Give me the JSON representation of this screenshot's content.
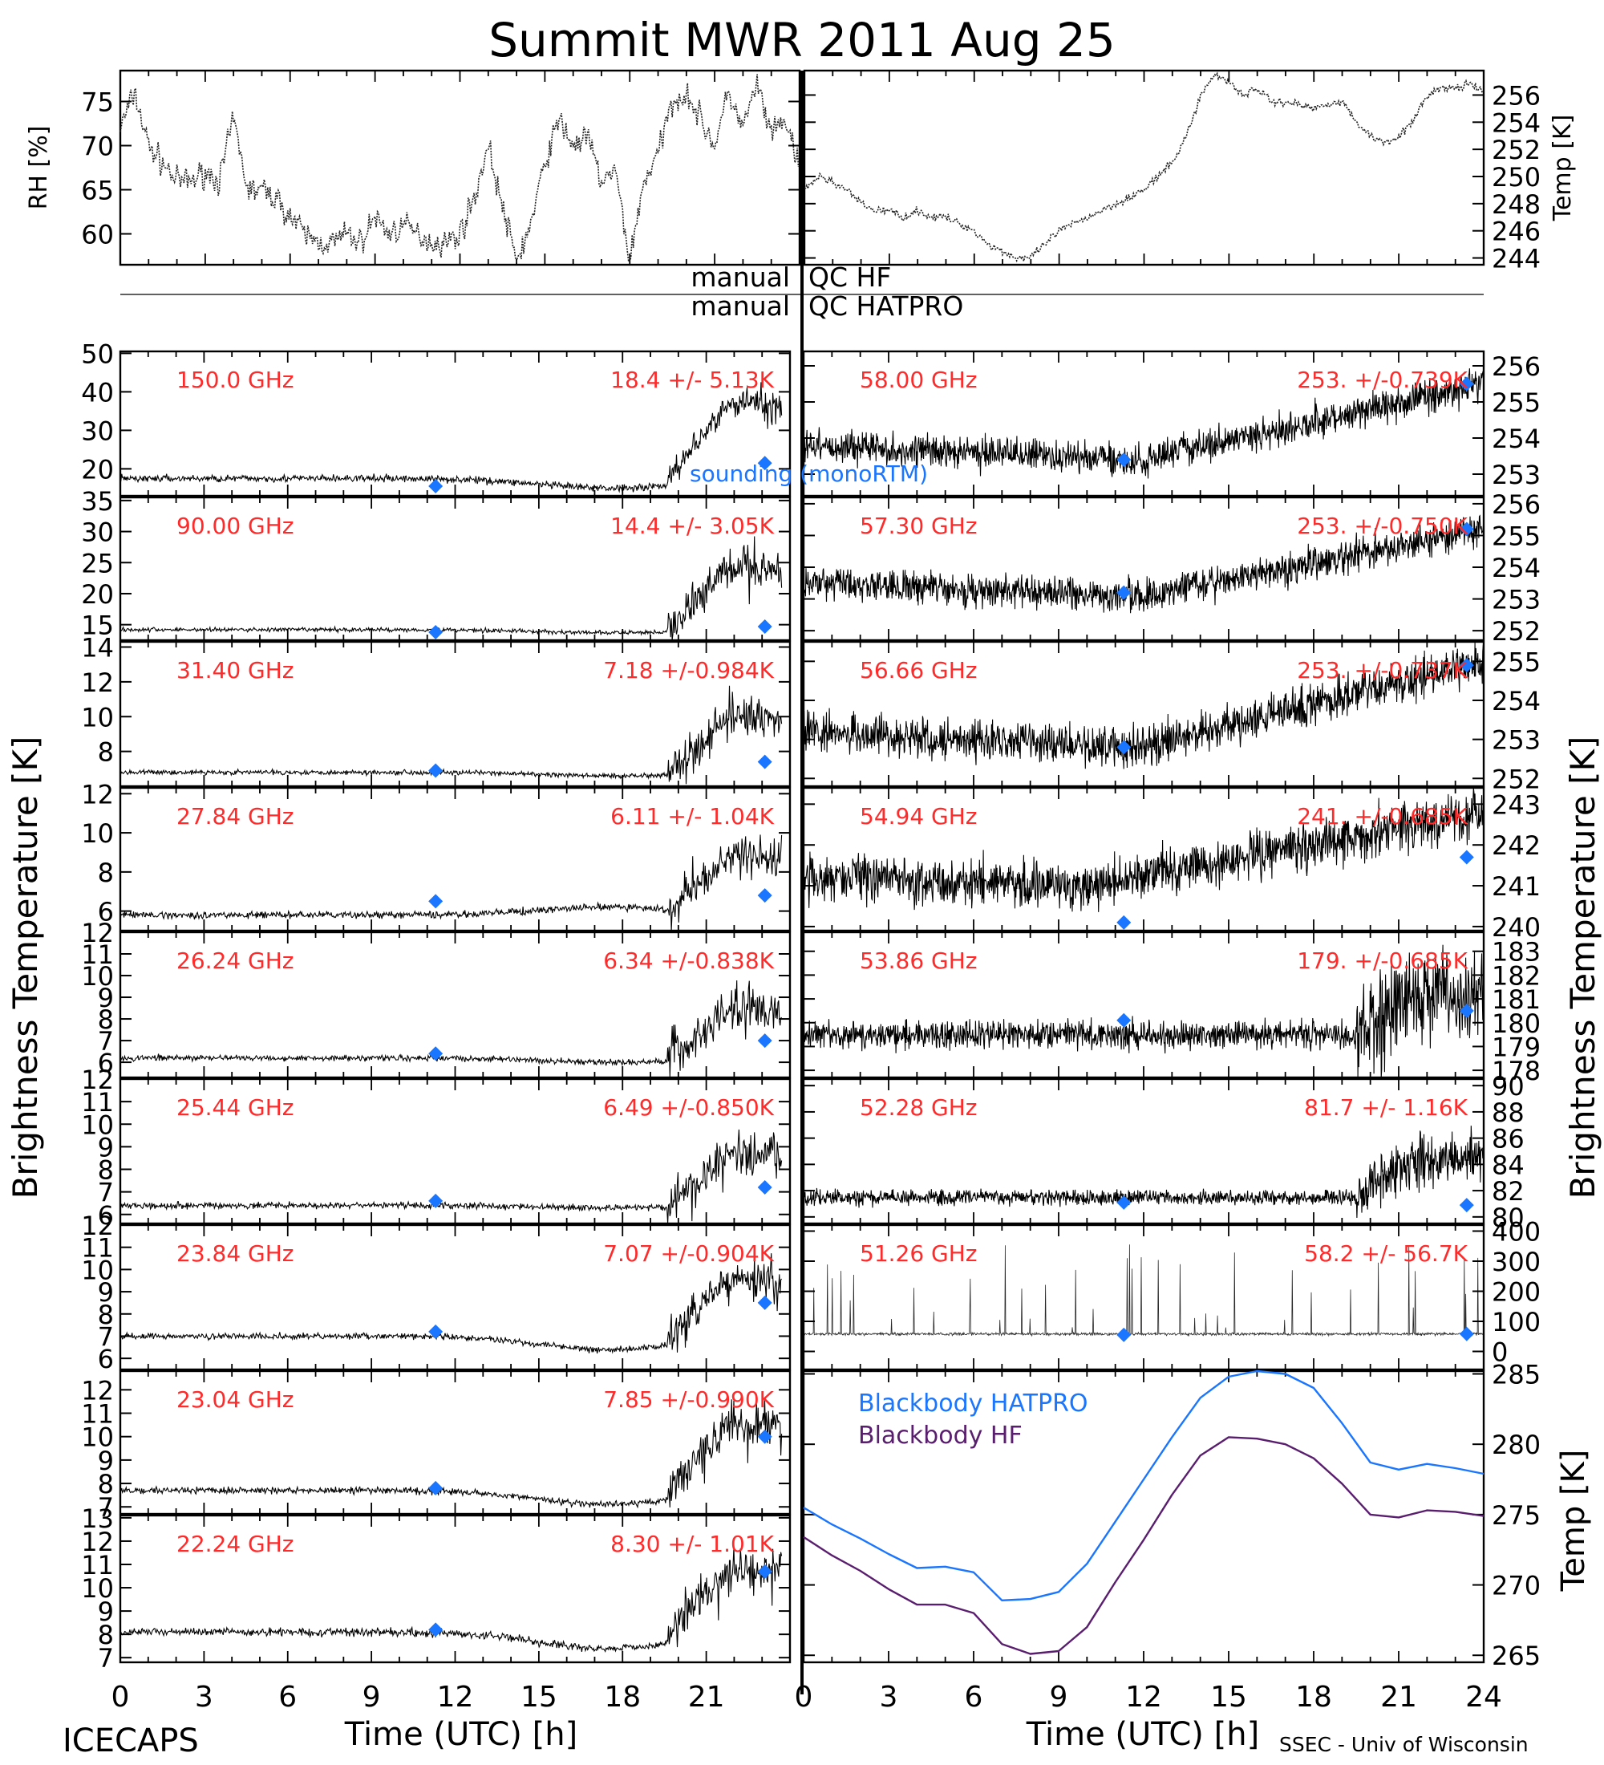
{
  "page": {
    "title": "Summit MWR 2011 Aug 25",
    "footer_left": "ICECAPS",
    "footer_right": "SSEC - Univ of Wisconsin",
    "xlabel": "Time (UTC) [h]",
    "ylabel_left": "Brightness Temperature [K]",
    "ylabel_right": "Brightness Temperature [K]",
    "qc_label_left_1": "manual",
    "qc_label_right_1": "QC HF",
    "qc_label_left_2": "manual",
    "qc_label_right_2": "QC HATPRO",
    "sounding_label": "sounding (monoRTM)",
    "colors": {
      "stats": "#ff2a2a",
      "sounding": "#1a75ff",
      "bb_hatpro": "#1a75ff",
      "bb_hf": "#5a1e6e",
      "data": "#000000"
    }
  },
  "chart_data": [
    {
      "id": "rh",
      "type": "line",
      "ylabel": "RH [%]",
      "xlim": [
        0,
        24
      ],
      "ylim": [
        56.5,
        78.5
      ],
      "yticks": [
        60,
        65,
        70,
        75
      ],
      "series": [
        {
          "x": [
            0,
            0.5,
            1,
            1.5,
            2,
            2.5,
            3,
            3.5,
            4,
            4.5,
            5,
            5.5,
            6,
            6.5,
            7,
            7.5,
            8,
            8.5,
            9,
            9.5,
            10,
            10.5,
            11,
            11.5,
            12,
            12.5,
            13,
            13.5,
            14,
            14.5,
            15,
            15.5,
            16,
            16.5,
            17,
            17.5,
            18,
            18.5,
            19,
            19.5,
            20,
            20.5,
            21,
            21.5,
            22,
            22.5,
            23,
            23.5,
            24
          ],
          "y": [
            72,
            76,
            70,
            68,
            66,
            66,
            67,
            66,
            73,
            65,
            65,
            64,
            62,
            60,
            59,
            59,
            60,
            59,
            62,
            60,
            61,
            60,
            59,
            59,
            60,
            64,
            70,
            63,
            57,
            61,
            68,
            73,
            70,
            71,
            66,
            67,
            57,
            66,
            69,
            75,
            76,
            73,
            70,
            76,
            72,
            77,
            71,
            73,
            67
          ]
        }
      ]
    },
    {
      "id": "temp",
      "type": "line",
      "ylabel": "Temp [K]",
      "xlim": [
        0,
        24
      ],
      "ylim": [
        243.5,
        257.8
      ],
      "yticks": [
        244,
        246,
        248,
        250,
        252,
        254,
        256
      ],
      "series": [
        {
          "x": [
            0,
            0.5,
            1,
            1.5,
            2,
            2.5,
            3,
            3.5,
            4,
            4.5,
            5,
            5.5,
            6,
            6.5,
            7,
            7.5,
            8,
            8.5,
            9,
            9.5,
            10,
            10.5,
            11,
            11.5,
            12,
            12.5,
            13,
            13.5,
            14,
            14.5,
            15,
            15.5,
            16,
            16.5,
            17,
            17.5,
            18,
            18.5,
            19,
            19.5,
            20,
            20.5,
            21,
            21.5,
            22,
            22.5,
            23,
            23.5,
            24
          ],
          "y": [
            249,
            250,
            249.6,
            249,
            248,
            247.5,
            247.5,
            247,
            247.5,
            247,
            247,
            246.5,
            246,
            245,
            244.5,
            244,
            244,
            245,
            246,
            246.5,
            247,
            247.5,
            248,
            248.5,
            249,
            250,
            251,
            253,
            256,
            257.5,
            257,
            256,
            256.5,
            255.5,
            255.5,
            255.3,
            255,
            255.4,
            255.5,
            254,
            253,
            252.5,
            253,
            254,
            256,
            256.5,
            256.5,
            256.8,
            256.2
          ]
        }
      ]
    },
    {
      "id": "p150",
      "type": "line",
      "col": "left",
      "row": 0,
      "freq": "150.0 GHz",
      "stats": "18.4 +/-  5.13K",
      "ylim": [
        13,
        50.5
      ],
      "yticks": [
        20,
        30,
        40,
        50
      ],
      "base": 17.5,
      "baseline_dip": 2.5,
      "noise": 0.8,
      "rise_to": 37,
      "rise_noise": 5,
      "sounding": [
        {
          "x": 11.3,
          "y": 15.5
        },
        {
          "x": 23.1,
          "y": 21.5
        }
      ]
    },
    {
      "id": "p90",
      "type": "line",
      "col": "left",
      "row": 1,
      "freq": "90.00 GHz",
      "stats": "14.4 +/-  3.05K",
      "ylim": [
        12.5,
        35.5
      ],
      "yticks": [
        15,
        20,
        25,
        30,
        35
      ],
      "base": 14.2,
      "baseline_dip": 0.5,
      "noise": 0.3,
      "rise_to": 24,
      "rise_noise": 4,
      "sounding": [
        {
          "x": 11.3,
          "y": 13.8
        },
        {
          "x": 23.1,
          "y": 14.7
        }
      ]
    },
    {
      "id": "p31",
      "type": "line",
      "col": "left",
      "row": 2,
      "freq": "31.40 GHz",
      "stats": "7.18 +/-0.984K",
      "ylim": [
        6,
        14.3
      ],
      "yticks": [
        8,
        10,
        12,
        14
      ],
      "base": 6.8,
      "baseline_dip": 0.2,
      "noise": 0.12,
      "rise_to": 10,
      "rise_noise": 1.5,
      "sounding": [
        {
          "x": 11.3,
          "y": 6.9
        },
        {
          "x": 23.1,
          "y": 7.4
        }
      ]
    },
    {
      "id": "p27",
      "type": "line",
      "col": "left",
      "row": 3,
      "freq": "27.84 GHz",
      "stats": "6.11 +/- 1.04K",
      "ylim": [
        5,
        12.3
      ],
      "yticks": [
        6,
        8,
        10,
        12
      ],
      "base": 5.8,
      "baseline_dip": -0.4,
      "noise": 0.15,
      "rise_to": 8.8,
      "rise_noise": 1.3,
      "sounding": [
        {
          "x": 11.3,
          "y": 6.5
        },
        {
          "x": 23.1,
          "y": 6.8
        }
      ]
    },
    {
      "id": "p26",
      "type": "line",
      "col": "left",
      "row": 4,
      "freq": "26.24 GHz",
      "stats": "6.34 +/-0.838K",
      "ylim": [
        5.3,
        12
      ],
      "yticks": [
        6,
        7,
        8,
        9,
        10,
        11,
        12
      ],
      "base": 6.2,
      "baseline_dip": 0.2,
      "noise": 0.12,
      "rise_to": 8.5,
      "rise_noise": 1.2,
      "sounding": [
        {
          "x": 11.3,
          "y": 6.4
        },
        {
          "x": 23.1,
          "y": 7
        }
      ]
    },
    {
      "id": "p25",
      "type": "line",
      "col": "left",
      "row": 5,
      "freq": "25.44 GHz",
      "stats": "6.49 +/-0.850K",
      "ylim": [
        5.6,
        12
      ],
      "yticks": [
        6,
        7,
        8,
        9,
        10,
        11,
        12
      ],
      "base": 6.4,
      "baseline_dip": 0.1,
      "noise": 0.12,
      "rise_to": 8.6,
      "rise_noise": 1.2,
      "sounding": [
        {
          "x": 11.3,
          "y": 6.6
        },
        {
          "x": 23.1,
          "y": 7.2
        }
      ]
    },
    {
      "id": "p23a",
      "type": "line",
      "col": "left",
      "row": 6,
      "freq": "23.84 GHz",
      "stats": "7.07 +/-0.904K",
      "ylim": [
        5.5,
        12
      ],
      "yticks": [
        6,
        7,
        8,
        9,
        10,
        11,
        12
      ],
      "base": 7,
      "baseline_dip": 0.6,
      "noise": 0.12,
      "rise_to": 9.5,
      "rise_noise": 1.2,
      "sounding": [
        {
          "x": 11.3,
          "y": 7.2
        },
        {
          "x": 23.1,
          "y": 8.5
        }
      ]
    },
    {
      "id": "p23b",
      "type": "line",
      "col": "left",
      "row": 7,
      "freq": "23.04 GHz",
      "stats": "7.85 +/-0.990K",
      "ylim": [
        6.7,
        12.8
      ],
      "yticks": [
        7,
        8,
        9,
        10,
        11,
        12
      ],
      "base": 7.7,
      "baseline_dip": 0.6,
      "noise": 0.12,
      "rise_to": 10.5,
      "rise_noise": 1.2,
      "sounding": [
        {
          "x": 11.3,
          "y": 7.8
        },
        {
          "x": 23.1,
          "y": 10
        }
      ]
    },
    {
      "id": "p22",
      "type": "line",
      "col": "left",
      "row": 8,
      "freq": "22.24 GHz",
      "stats": "8.30 +/- 1.01K",
      "ylim": [
        6.8,
        13.1
      ],
      "yticks": [
        7,
        8,
        9,
        10,
        11,
        12,
        13
      ],
      "base": 8.1,
      "baseline_dip": 0.7,
      "noise": 0.14,
      "rise_to": 10.8,
      "rise_noise": 1.2,
      "sounding": [
        {
          "x": 11.3,
          "y": 8.2
        },
        {
          "x": 23.1,
          "y": 10.7
        }
      ]
    },
    {
      "id": "p58",
      "type": "line",
      "col": "right",
      "row": 0,
      "freq": "58.00 GHz",
      "stats": "253. +/-0.739K",
      "ylim": [
        252.4,
        256.4
      ],
      "yticks": [
        253,
        254,
        255,
        256
      ],
      "base": 253.8,
      "noise": 0.4,
      "trend": "v",
      "trend_end": 255.5,
      "sounding": [
        {
          "x": 11.3,
          "y": 253.4
        },
        {
          "x": 23.4,
          "y": 255.5
        }
      ]
    },
    {
      "id": "p57",
      "type": "line",
      "col": "right",
      "row": 1,
      "freq": "57.30 GHz",
      "stats": "253. +/-0.750K",
      "ylim": [
        251.7,
        256.2
      ],
      "yticks": [
        252,
        253,
        254,
        255,
        256
      ],
      "base": 253.5,
      "noise": 0.45,
      "trend": "v",
      "trend_end": 255.2,
      "sounding": [
        {
          "x": 11.3,
          "y": 253.2
        },
        {
          "x": 23.4,
          "y": 255.2
        }
      ]
    },
    {
      "id": "p56",
      "type": "line",
      "col": "right",
      "row": 2,
      "freq": "56.66 GHz",
      "stats": "253. +/-0.737K",
      "ylim": [
        251.8,
        255.5
      ],
      "yticks": [
        252,
        253,
        254,
        255
      ],
      "base": 253.2,
      "noise": 0.45,
      "trend": "v",
      "trend_end": 255,
      "sounding": [
        {
          "x": 11.3,
          "y": 252.8
        },
        {
          "x": 23.4,
          "y": 254.9
        }
      ]
    },
    {
      "id": "p54",
      "type": "line",
      "col": "right",
      "row": 3,
      "freq": "54.94 GHz",
      "stats": "241. +/-0.685K",
      "ylim": [
        239.9,
        243.4
      ],
      "yticks": [
        240,
        241,
        242,
        243
      ],
      "base": 241.2,
      "noise": 0.5,
      "trend": "rise",
      "trend_end": 242.8,
      "sounding": [
        {
          "x": 11.3,
          "y": 240.1
        },
        {
          "x": 23.4,
          "y": 241.7
        }
      ]
    },
    {
      "id": "p53",
      "type": "line",
      "col": "right",
      "row": 4,
      "freq": "53.86 GHz",
      "stats": "179. +/-0.685K",
      "ylim": [
        177.7,
        183.8
      ],
      "yticks": [
        178,
        179,
        180,
        181,
        182,
        183
      ],
      "base": 179.5,
      "noise": 0.5,
      "trend": "late",
      "trend_end": 181,
      "sounding": [
        {
          "x": 11.3,
          "y": 180.1
        },
        {
          "x": 23.4,
          "y": 180.5
        }
      ]
    },
    {
      "id": "p52",
      "type": "line",
      "col": "right",
      "row": 5,
      "freq": "52.28 GHz",
      "stats": "81.7 +/- 1.16K",
      "ylim": [
        79.5,
        90.5
      ],
      "yticks": [
        80,
        82,
        84,
        86,
        88,
        90
      ],
      "base": 81.5,
      "noise": 0.5,
      "trend": "late",
      "trend_end": 84.5,
      "sounding": [
        {
          "x": 11.3,
          "y": 81.1
        },
        {
          "x": 23.4,
          "y": 80.9
        }
      ]
    },
    {
      "id": "p51",
      "type": "scatter",
      "col": "right",
      "row": 6,
      "freq": "51.26 GHz",
      "stats": "58.2 +/- 56.7K",
      "ylim": [
        -60,
        420
      ],
      "yticks": [
        0,
        100,
        200,
        300,
        400
      ],
      "base": 58,
      "noise": 4,
      "trend": "spikes",
      "sounding": [
        {
          "x": 11.3,
          "y": 55
        },
        {
          "x": 23.4,
          "y": 58
        }
      ]
    },
    {
      "id": "blackbody",
      "type": "line",
      "ylabel": "Temp [K]",
      "xlim": [
        0,
        24
      ],
      "ylim": [
        264.5,
        285.2
      ],
      "yticks": [
        265,
        270,
        275,
        280,
        285
      ],
      "series": [
        {
          "name": "Blackbody HATPRO",
          "x": [
            0,
            1,
            2,
            3,
            4,
            5,
            6,
            7,
            8,
            9,
            10,
            11,
            12,
            13,
            14,
            15,
            16,
            17,
            18,
            19,
            20,
            21,
            22,
            23,
            24
          ],
          "y": [
            275.5,
            274.3,
            273.3,
            272.2,
            271.2,
            271.3,
            270.9,
            268.9,
            269,
            269.5,
            271.5,
            274.5,
            277.5,
            280.5,
            283.3,
            284.8,
            285.3,
            285,
            284,
            281.5,
            278.7,
            278.2,
            278.6,
            278.3,
            277.9
          ]
        },
        {
          "name": "Blackbody HF",
          "x": [
            0,
            1,
            2,
            3,
            4,
            5,
            6,
            7,
            8,
            9,
            10,
            11,
            12,
            13,
            14,
            15,
            16,
            17,
            18,
            19,
            20,
            21,
            22,
            23,
            24
          ],
          "y": [
            273.4,
            272.1,
            271,
            269.7,
            268.6,
            268.6,
            268,
            265.8,
            265.1,
            265.3,
            267,
            270.2,
            273.2,
            276.4,
            279.2,
            280.5,
            280.4,
            280,
            279,
            277.2,
            275,
            274.8,
            275.3,
            275.2,
            274.9
          ]
        }
      ]
    }
  ],
  "xticks_left": [
    "0",
    "3",
    "6",
    "9",
    "12",
    "15",
    "18",
    "21"
  ],
  "xticks_right": [
    "0",
    "3",
    "6",
    "9",
    "12",
    "15",
    "18",
    "21",
    "24"
  ]
}
